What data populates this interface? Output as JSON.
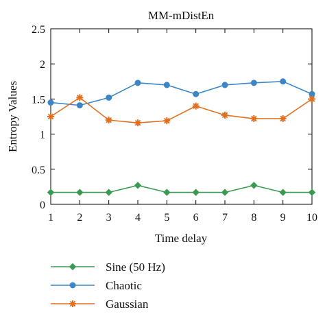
{
  "chart_data": {
    "type": "line",
    "title": "MM-mDistEn",
    "xlabel": "Time delay",
    "ylabel": "Entropy Values",
    "x": [
      1,
      2,
      3,
      4,
      5,
      6,
      7,
      8,
      9,
      10
    ],
    "xlim": [
      1,
      10
    ],
    "ylim": [
      0,
      2.5
    ],
    "x_ticks": [
      "1",
      "2",
      "3",
      "4",
      "5",
      "6",
      "7",
      "8",
      "9",
      "10"
    ],
    "y_ticks": [
      {
        "value": 0,
        "label": "0"
      },
      {
        "value": 0.5,
        "label": "0.5"
      },
      {
        "value": 1,
        "label": "1"
      },
      {
        "value": 1.5,
        "label": "1.5"
      },
      {
        "value": 2,
        "label": "2"
      },
      {
        "value": 2.5,
        "label": "2.5"
      }
    ],
    "grid": false,
    "legend_position": "bottom",
    "series": [
      {
        "name": "Sine (50 Hz)",
        "color": "#3a9a52",
        "marker": "diamond",
        "values": [
          0.17,
          0.17,
          0.17,
          0.27,
          0.17,
          0.17,
          0.17,
          0.27,
          0.17,
          0.17
        ]
      },
      {
        "name": "Chaotic",
        "color": "#3d86c6",
        "marker": "circle",
        "values": [
          1.45,
          1.41,
          1.52,
          1.73,
          1.7,
          1.57,
          1.7,
          1.73,
          1.75,
          1.57
        ]
      },
      {
        "name": "Gaussian",
        "color": "#e07020",
        "marker": "star",
        "values": [
          1.25,
          1.52,
          1.2,
          1.16,
          1.19,
          1.4,
          1.27,
          1.22,
          1.22,
          1.5
        ]
      }
    ]
  }
}
